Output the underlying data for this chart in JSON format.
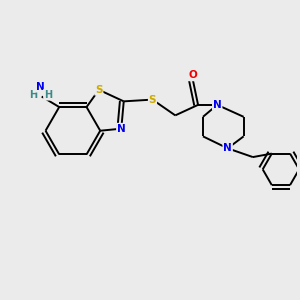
{
  "background_color": "#ebebeb",
  "atom_colors": {
    "C": "#000000",
    "N": "#0000ee",
    "O": "#ee0000",
    "S": "#ccaa00",
    "H": "#3a8a8a"
  },
  "bond_color": "#000000",
  "bond_width": 1.4
}
